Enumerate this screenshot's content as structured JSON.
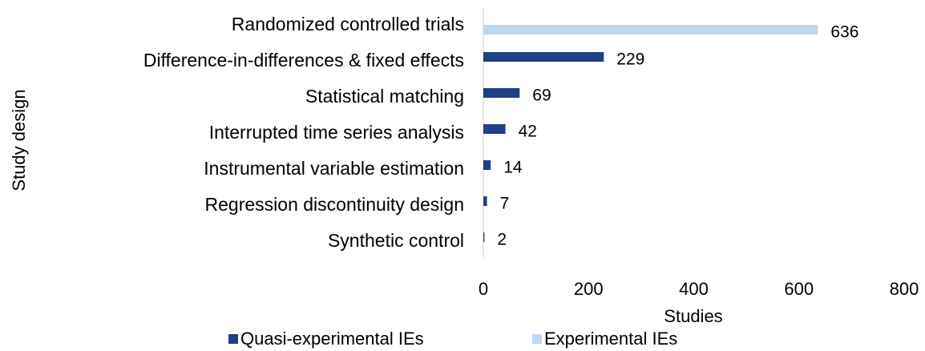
{
  "chart_data": {
    "type": "bar",
    "orientation": "horizontal",
    "categories": [
      "Randomized controlled trials",
      "Difference-in-differences & fixed effects",
      "Statistical matching",
      "Interrupted time series analysis",
      "Instrumental variable estimation",
      "Regression discontinuity design",
      "Synthetic control"
    ],
    "series": [
      {
        "name": "Quasi-experimental IEs",
        "color": "#1f3f86",
        "values": [
          null,
          229,
          69,
          42,
          14,
          7,
          2
        ]
      },
      {
        "name": "Experimental IEs",
        "color": "#bdd7ee",
        "values": [
          636,
          null,
          null,
          null,
          null,
          null,
          null
        ]
      }
    ],
    "xlabel": "Studies",
    "ylabel": "Study design",
    "xlim": [
      0,
      800
    ],
    "xticks": [
      0,
      200,
      400,
      600,
      800
    ],
    "grid": false,
    "legend": "bottom"
  }
}
